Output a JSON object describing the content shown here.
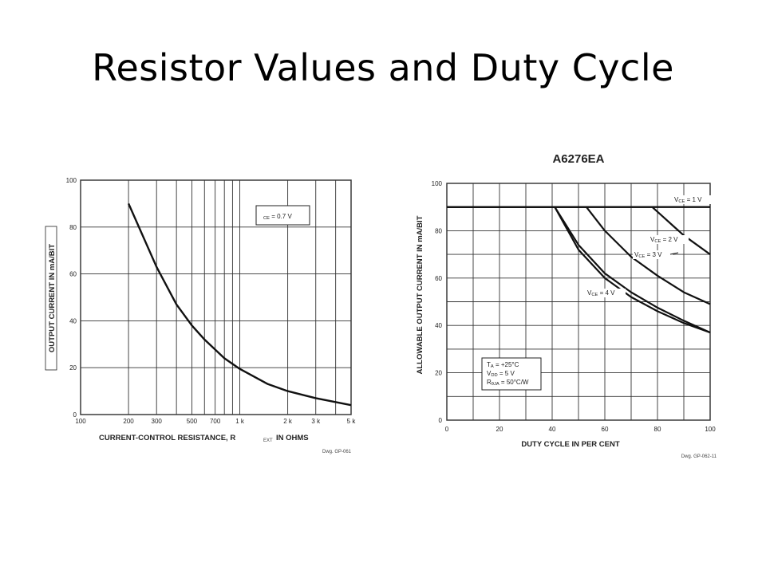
{
  "slide": {
    "title": "Resistor Values and Duty Cycle"
  },
  "chart_data": [
    {
      "type": "line",
      "x_scale": "log",
      "xlim": [
        100,
        5000
      ],
      "ylim": [
        0,
        100
      ],
      "x_ticks": [
        100,
        200,
        300,
        500,
        700,
        1000,
        2000,
        3000,
        5000
      ],
      "x_tick_labels": [
        "100",
        "200",
        "300",
        "500",
        "700",
        "1 k",
        "2 k",
        "3 k",
        "5 k"
      ],
      "x_grid": [
        100,
        200,
        300,
        400,
        500,
        600,
        700,
        800,
        900,
        1000,
        2000,
        3000,
        4000,
        5000
      ],
      "y_ticks": [
        0,
        20,
        40,
        60,
        80,
        100
      ],
      "ylabel": "OUTPUT CURRENT IN mA/BIT",
      "xlabel_main": "CURRENT-CONTROL RESISTANCE, R",
      "xlabel_sub": "EXT",
      "xlabel_unit": "IN OHMS",
      "annotation": {
        "text": "V",
        "sub": "CE",
        "rest": " = 0.7 V"
      },
      "drawing_number": "Dwg. GP-061",
      "grid": true,
      "series": [
        {
          "x": [
            200,
            300,
            400,
            500,
            600,
            800,
            1000,
            1500,
            2000,
            3000,
            5000
          ],
          "y": [
            90,
            63,
            47,
            38,
            32,
            24,
            19.5,
            13,
            10,
            7,
            4
          ]
        }
      ]
    },
    {
      "type": "line",
      "title": "A6276EA",
      "xlim": [
        0,
        100
      ],
      "ylim": [
        0,
        100
      ],
      "x_ticks": [
        0,
        20,
        40,
        60,
        80,
        100
      ],
      "x_grid": [
        0,
        10,
        20,
        30,
        40,
        50,
        60,
        70,
        80,
        90,
        100
      ],
      "y_ticks": [
        0,
        20,
        40,
        60,
        80,
        100
      ],
      "y_grid": [
        0,
        10,
        20,
        30,
        40,
        50,
        60,
        70,
        80,
        90,
        100
      ],
      "xlabel": "DUTY CYCLE IN PER CENT",
      "ylabel": "ALLOWABLE OUTPUT CURRENT IN mA/BIT",
      "conditions": [
        {
          "v": "T",
          "sub": "A",
          "rest": " = +25°C"
        },
        {
          "v": "V",
          "sub": "DD",
          "rest": " = 5 V"
        },
        {
          "v": "R",
          "sub": "θJA",
          "rest": " = 50°C/W"
        }
      ],
      "drawing_number": "Dwg. GP-062-11",
      "grid": true,
      "series": [
        {
          "label": {
            "v": "V",
            "sub": "CE",
            "rest": " = 1 V"
          },
          "x": [
            0,
            78,
            82,
            86,
            90,
            95,
            100
          ],
          "y": [
            90,
            90,
            86,
            82,
            78,
            74,
            70
          ]
        },
        {
          "label": {
            "v": "V",
            "sub": "CE",
            "rest": " = 2 V"
          },
          "x": [
            0,
            53,
            60,
            70,
            80,
            90,
            100
          ],
          "y": [
            90,
            90,
            80,
            69,
            61,
            54,
            49
          ]
        },
        {
          "label": {
            "v": "V",
            "sub": "CE",
            "rest": " = 3 V"
          },
          "x": [
            0,
            41,
            50,
            60,
            70,
            80,
            90,
            100
          ],
          "y": [
            90,
            90,
            72,
            60,
            52,
            46,
            41,
            37
          ]
        },
        {
          "label": {
            "v": "V",
            "sub": "CE",
            "rest": " = 4 V"
          }
        }
      ]
    }
  ]
}
